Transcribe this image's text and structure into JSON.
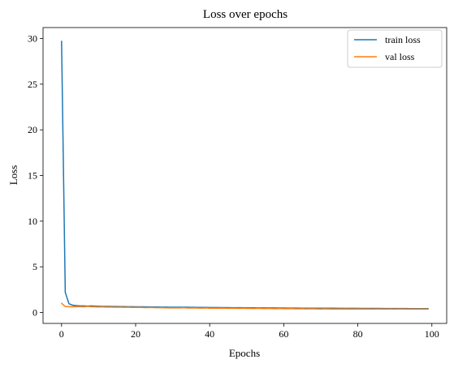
{
  "chart_data": {
    "type": "line",
    "title": "Loss over epochs",
    "xlabel": "Epochs",
    "ylabel": "Loss",
    "xlim": [
      -5,
      104
    ],
    "ylim": [
      -1.2,
      31.2
    ],
    "xticks": [
      0,
      20,
      40,
      60,
      80,
      100
    ],
    "yticks": [
      0,
      5,
      10,
      15,
      20,
      25,
      30
    ],
    "grid": false,
    "legend_position": "top-right",
    "series": [
      {
        "name": "train loss",
        "color": "#1f77b4",
        "x": [
          0,
          1,
          2,
          3,
          4,
          5,
          6,
          7,
          8,
          9,
          10,
          11,
          12,
          13,
          14,
          15,
          16,
          17,
          18,
          19,
          20,
          21,
          22,
          23,
          24,
          25,
          26,
          27,
          28,
          29,
          30,
          31,
          32,
          33,
          34,
          35,
          36,
          37,
          38,
          39,
          40,
          41,
          42,
          43,
          44,
          45,
          46,
          47,
          48,
          49,
          50,
          51,
          52,
          53,
          54,
          55,
          56,
          57,
          58,
          59,
          60,
          61,
          62,
          63,
          64,
          65,
          66,
          67,
          68,
          69,
          70,
          71,
          72,
          73,
          74,
          75,
          76,
          77,
          78,
          79,
          80,
          81,
          82,
          83,
          84,
          85,
          86,
          87,
          88,
          89,
          90,
          91,
          92,
          93,
          94,
          95,
          96,
          97,
          98,
          99
        ],
        "values": [
          29.7,
          2.2,
          0.95,
          0.8,
          0.75,
          0.72,
          0.72,
          0.7,
          0.72,
          0.7,
          0.68,
          0.67,
          0.66,
          0.66,
          0.65,
          0.65,
          0.64,
          0.64,
          0.63,
          0.63,
          0.62,
          0.62,
          0.62,
          0.61,
          0.61,
          0.6,
          0.6,
          0.59,
          0.59,
          0.58,
          0.58,
          0.58,
          0.57,
          0.57,
          0.57,
          0.56,
          0.56,
          0.55,
          0.55,
          0.55,
          0.54,
          0.54,
          0.54,
          0.53,
          0.53,
          0.53,
          0.52,
          0.52,
          0.52,
          0.52,
          0.51,
          0.51,
          0.51,
          0.5,
          0.5,
          0.5,
          0.5,
          0.5,
          0.49,
          0.49,
          0.49,
          0.48,
          0.48,
          0.48,
          0.48,
          0.47,
          0.47,
          0.47,
          0.47,
          0.47,
          0.46,
          0.46,
          0.46,
          0.46,
          0.46,
          0.45,
          0.45,
          0.45,
          0.45,
          0.45,
          0.45,
          0.44,
          0.44,
          0.44,
          0.44,
          0.44,
          0.44,
          0.43,
          0.43,
          0.43,
          0.43,
          0.43,
          0.43,
          0.43,
          0.42,
          0.42,
          0.42,
          0.42,
          0.42,
          0.42
        ]
      },
      {
        "name": "val loss",
        "color": "#ff7f0e",
        "x": [
          0,
          1,
          2,
          3,
          4,
          5,
          6,
          7,
          8,
          9,
          10,
          11,
          12,
          13,
          14,
          15,
          16,
          17,
          18,
          19,
          20,
          21,
          22,
          23,
          24,
          25,
          26,
          27,
          28,
          29,
          30,
          31,
          32,
          33,
          34,
          35,
          36,
          37,
          38,
          39,
          40,
          41,
          42,
          43,
          44,
          45,
          46,
          47,
          48,
          49,
          50,
          51,
          52,
          53,
          54,
          55,
          56,
          57,
          58,
          59,
          60,
          61,
          62,
          63,
          64,
          65,
          66,
          67,
          68,
          69,
          70,
          71,
          72,
          73,
          74,
          75,
          76,
          77,
          78,
          79,
          80,
          81,
          82,
          83,
          84,
          85,
          86,
          87,
          88,
          89,
          90,
          91,
          92,
          93,
          94,
          95,
          96,
          97,
          98,
          99
        ],
        "values": [
          1.0,
          0.65,
          0.63,
          0.64,
          0.62,
          0.64,
          0.62,
          0.66,
          0.63,
          0.62,
          0.6,
          0.62,
          0.59,
          0.6,
          0.58,
          0.58,
          0.58,
          0.56,
          0.57,
          0.55,
          0.55,
          0.56,
          0.54,
          0.53,
          0.55,
          0.53,
          0.52,
          0.53,
          0.51,
          0.5,
          0.5,
          0.51,
          0.5,
          0.52,
          0.49,
          0.49,
          0.5,
          0.48,
          0.48,
          0.49,
          0.47,
          0.47,
          0.46,
          0.46,
          0.47,
          0.45,
          0.46,
          0.45,
          0.44,
          0.46,
          0.44,
          0.44,
          0.43,
          0.45,
          0.43,
          0.42,
          0.44,
          0.42,
          0.41,
          0.43,
          0.41,
          0.41,
          0.42,
          0.4,
          0.4,
          0.41,
          0.39,
          0.4,
          0.4,
          0.39,
          0.38,
          0.4,
          0.39,
          0.38,
          0.39,
          0.38,
          0.37,
          0.39,
          0.38,
          0.37,
          0.39,
          0.38,
          0.37,
          0.38,
          0.36,
          0.37,
          0.38,
          0.36,
          0.37,
          0.38,
          0.36,
          0.37,
          0.37,
          0.36,
          0.37,
          0.36,
          0.36,
          0.37,
          0.36,
          0.36
        ]
      }
    ]
  }
}
